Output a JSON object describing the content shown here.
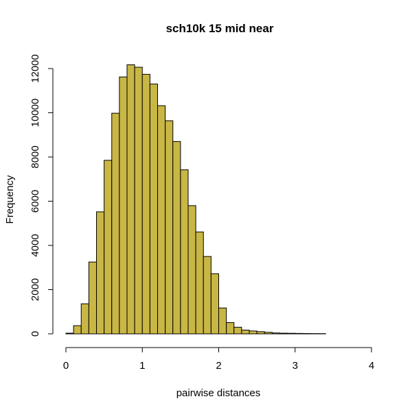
{
  "chart_data": {
    "type": "bar",
    "title": "sch10k 15 mid near",
    "xlabel": "pairwise distances",
    "ylabel": "Frequency",
    "xlim": [
      0,
      4
    ],
    "ylim": [
      0,
      12000
    ],
    "x_ticks": [
      0,
      1,
      2,
      3,
      4
    ],
    "y_ticks": [
      0,
      2000,
      4000,
      6000,
      8000,
      10000,
      12000
    ],
    "bin_width": 0.1,
    "bin_starts": [
      0.0,
      0.1,
      0.2,
      0.3,
      0.4,
      0.5,
      0.6,
      0.7,
      0.8,
      0.9,
      1.0,
      1.1,
      1.2,
      1.3,
      1.4,
      1.5,
      1.6,
      1.7,
      1.8,
      1.9,
      2.0,
      2.1,
      2.2,
      2.3,
      2.4,
      2.5,
      2.6,
      2.7,
      2.8,
      2.9,
      3.0,
      3.1,
      3.2,
      3.3,
      3.4,
      3.5,
      3.6,
      3.7,
      3.8,
      3.9
    ],
    "values": [
      30,
      370,
      1360,
      3250,
      5520,
      7850,
      9980,
      11620,
      12170,
      12060,
      11740,
      11300,
      10320,
      9640,
      8700,
      7420,
      5800,
      4610,
      3500,
      2720,
      1170,
      510,
      300,
      170,
      130,
      100,
      70,
      40,
      30,
      25,
      20,
      15,
      12,
      10,
      0,
      0,
      0,
      0,
      0,
      0
    ],
    "bar_color": "#C8B645",
    "grid": false
  }
}
